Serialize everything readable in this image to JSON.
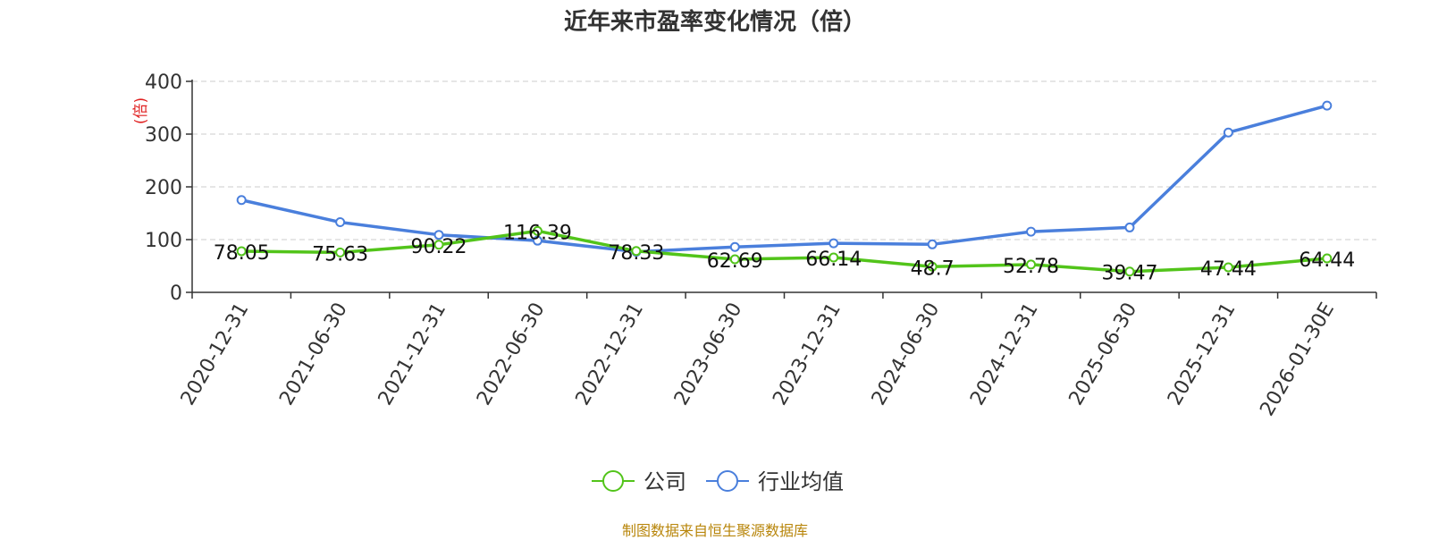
{
  "title": "近年来市盈率变化情况（倍）",
  "source_note": "制图数据来自恒生聚源数据库",
  "chart_data": {
    "type": "line",
    "title": "近年来市盈率变化情况（倍）",
    "ylabel": "(倍)",
    "xlabel": "",
    "ylim": [
      0,
      400
    ],
    "yticks": [
      0,
      100,
      200,
      300,
      400
    ],
    "grid": true,
    "legend_position": "bottom-center",
    "categories": [
      "2020-12-31",
      "2021-06-30",
      "2021-12-31",
      "2022-06-30",
      "2022-12-31",
      "2023-06-30",
      "2023-12-31",
      "2024-06-30",
      "2024-12-31",
      "2025-06-30",
      "2025-12-31",
      "2026-01-30E"
    ],
    "series": [
      {
        "name": "公司",
        "color": "#52c41a",
        "labeled": true,
        "values": [
          78.05,
          75.63,
          90.22,
          116.39,
          78.33,
          62.69,
          66.14,
          48.7,
          52.78,
          39.47,
          47.44,
          64.44
        ]
      },
      {
        "name": "行业均值",
        "color": "#4a7fdc",
        "labeled": false,
        "values": [
          175,
          133,
          109,
          98,
          77,
          86,
          93,
          91,
          115,
          123,
          303,
          354
        ]
      }
    ]
  }
}
